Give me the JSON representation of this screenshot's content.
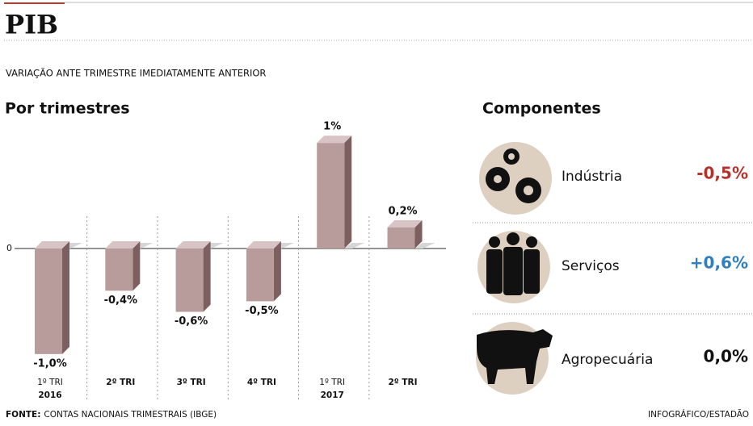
{
  "header": {
    "title": "PIB",
    "subtitle": "VARIAÇÃO ANTE TRIMESTRE IMEDIATAMENTE ANTERIOR"
  },
  "chart_data": {
    "type": "bar",
    "title": "Por trimestres",
    "categories": [
      "1º TRI",
      "2º TRI",
      "3º TRI",
      "4º TRI",
      "1º TRI",
      "2º TRI"
    ],
    "category_years": [
      "2016",
      null,
      null,
      null,
      "2017",
      null
    ],
    "values": [
      -1.0,
      -0.4,
      -0.6,
      -0.5,
      1,
      0.2
    ],
    "value_labels": [
      "-1,0%",
      "-0,4%",
      "-0,6%",
      "-0,5%",
      "1%",
      "0,2%"
    ],
    "color": "#b89c9c",
    "ylim": [
      -1.2,
      1.2
    ],
    "yticks": [
      0
    ]
  },
  "components": {
    "title": "Componentes",
    "items": [
      {
        "name": "Indústria",
        "value_label": "-0,5%",
        "color": "#b5322a"
      },
      {
        "name": "Serviços",
        "value_label": "+0,6%",
        "color": "#2f7fbf"
      },
      {
        "name": "Agropecuária",
        "value_label": "0,0%",
        "color": "#111111"
      }
    ]
  },
  "footer": {
    "source_label": "FONTE:",
    "source": "CONTAS NACIONAIS TRIMESTRAIS (IBGE)",
    "credit": "INFOGRÁFICO/ESTADÃO"
  }
}
